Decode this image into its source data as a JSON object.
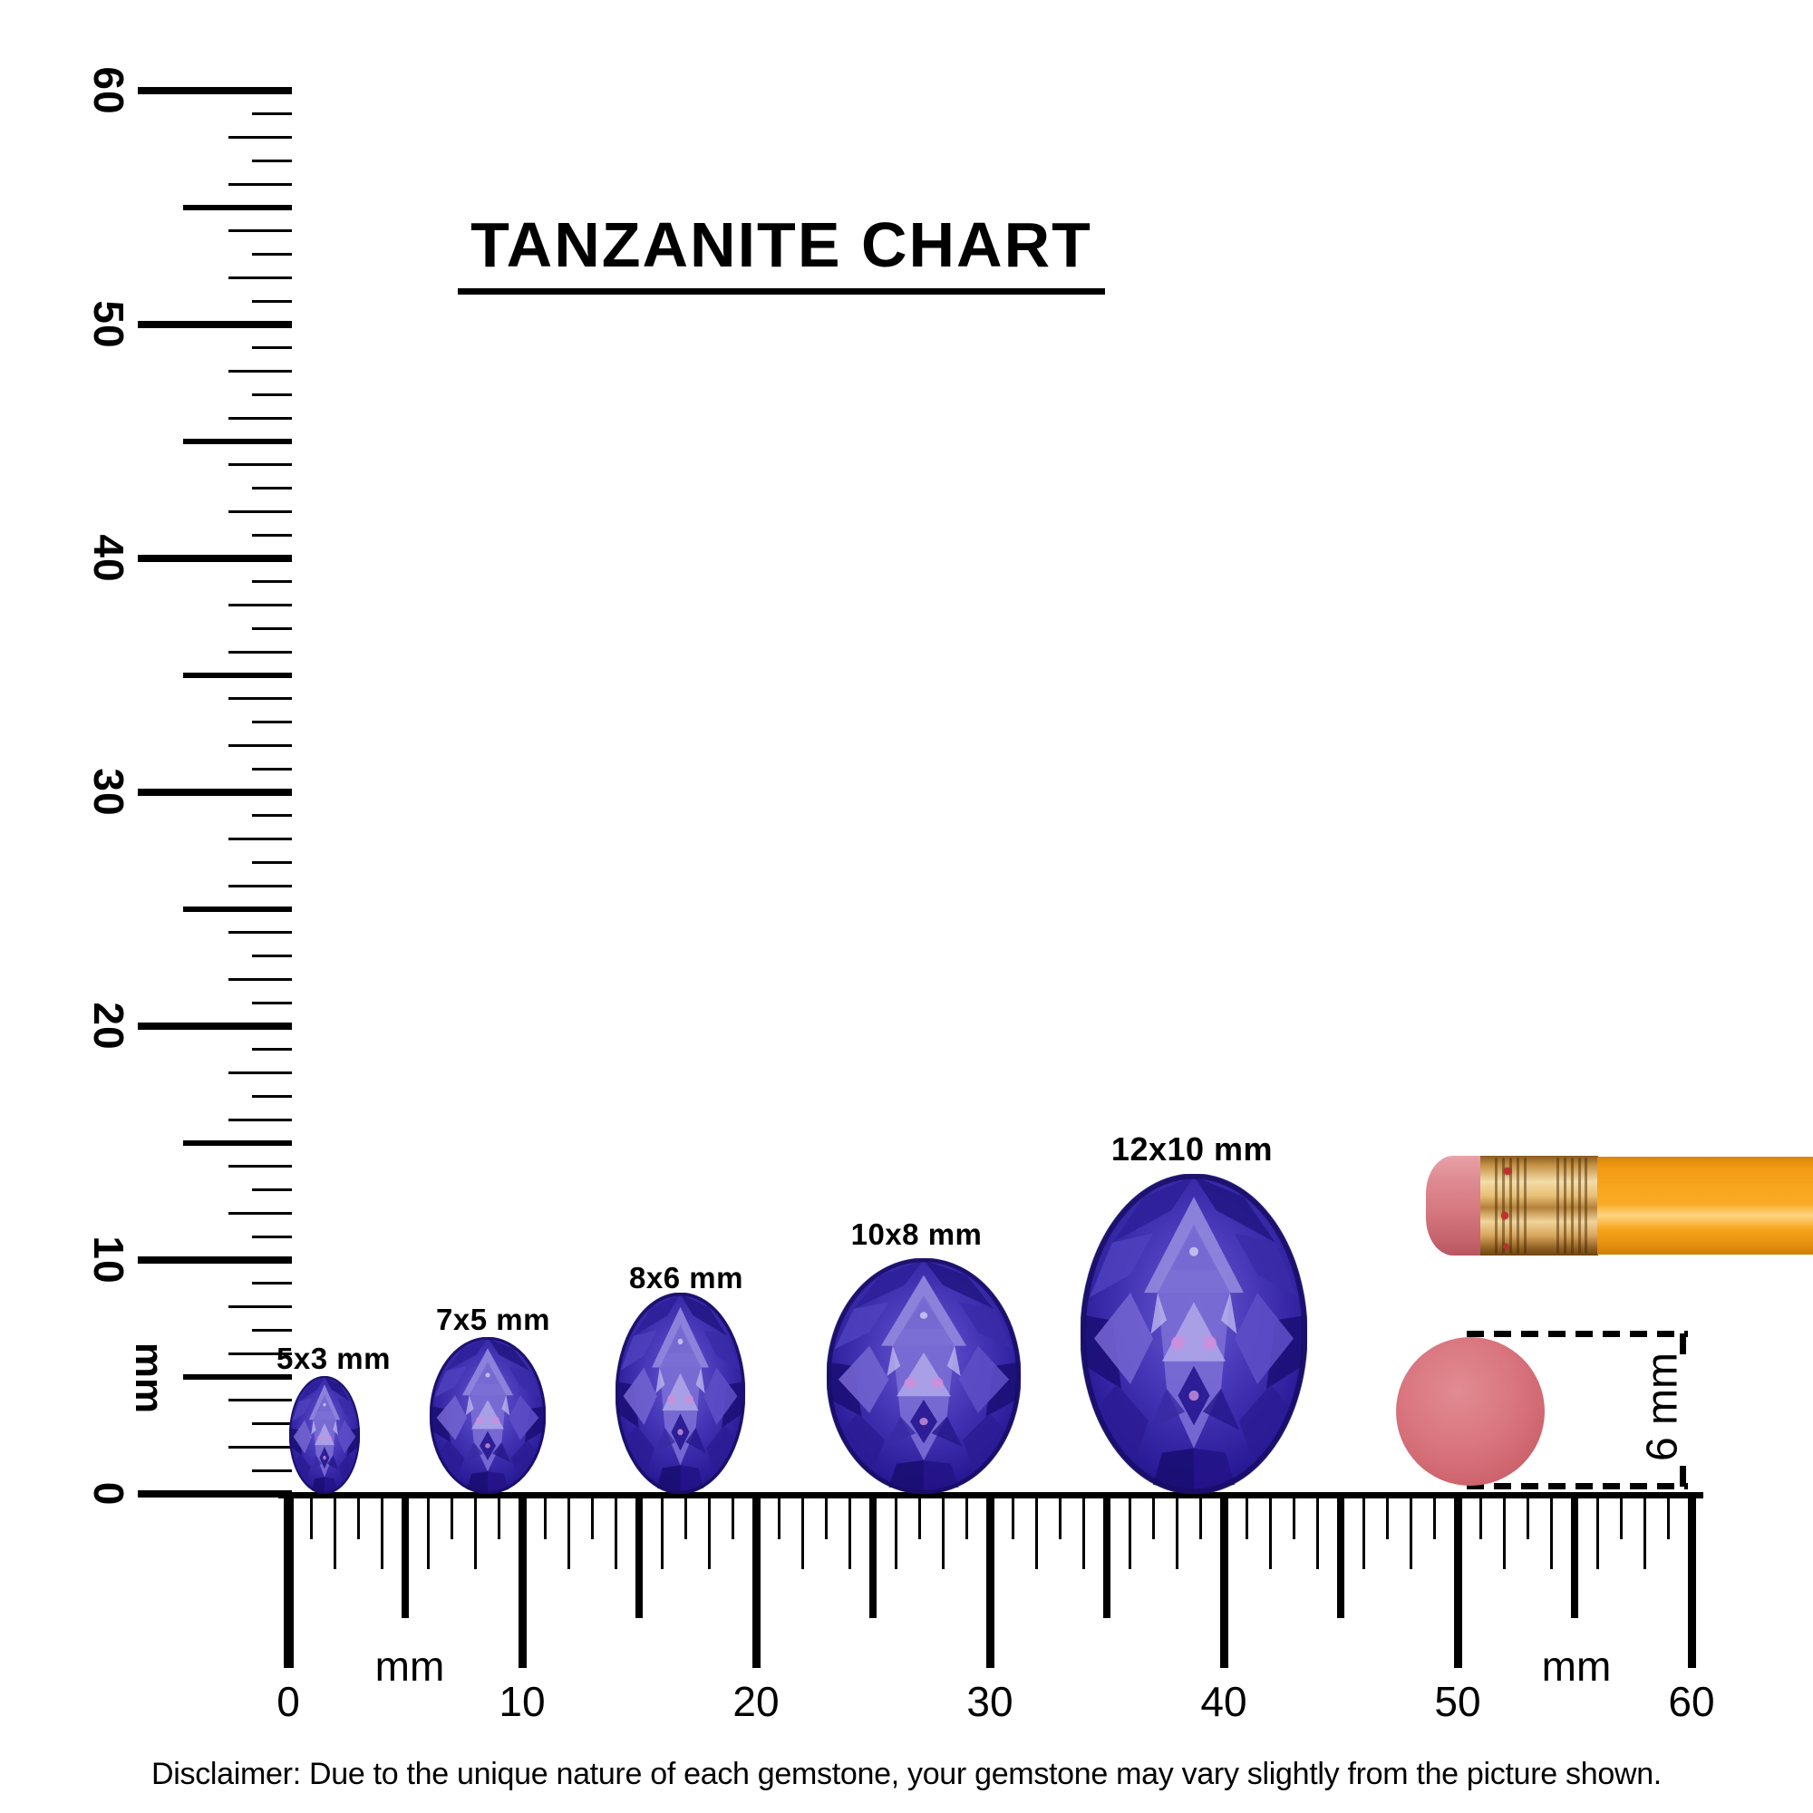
{
  "title": {
    "text": "TANZANITE CHART"
  },
  "vertical_ruler": {
    "unit_label": "mm",
    "major_labels": [
      "60",
      "50",
      "40",
      "30",
      "20",
      "10",
      "0"
    ],
    "range_mm": [
      0,
      60
    ]
  },
  "horizontal_ruler": {
    "unit_label_left": "mm",
    "unit_label_right": "mm",
    "major_labels": [
      "0",
      "10",
      "20",
      "30",
      "40",
      "50",
      "60"
    ],
    "range_mm": [
      0,
      60
    ]
  },
  "gems": [
    {
      "label": "5x3 mm",
      "height_mm": 5,
      "width_mm": 3
    },
    {
      "label": "7x5 mm",
      "height_mm": 7,
      "width_mm": 5
    },
    {
      "label": "8x6 mm",
      "height_mm": 8,
      "width_mm": 6
    },
    {
      "label": "10x8 mm",
      "height_mm": 10,
      "width_mm": 8
    },
    {
      "label": "12x10 mm",
      "height_mm": 12,
      "width_mm": 10
    }
  ],
  "size_reference": {
    "label": "6 mm"
  },
  "disclaimer": "Disclaimer: Due to the unique nature of each gemstone, your gemstone may vary slightly from the picture shown.",
  "colors": {
    "ink": "#000000",
    "gem_dark": "#1c1078",
    "gem_primary": "#4334b4",
    "gem_light": "#9289de",
    "pencil_body": "#f8a61e",
    "pencil_ferrule": "#e9c075",
    "pencil_eraser": "#d67880",
    "eraser_dot": "#d9757e"
  }
}
